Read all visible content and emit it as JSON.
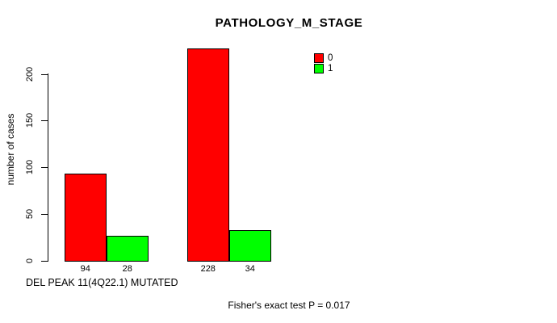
{
  "page": {
    "background": "#ffffff",
    "text_color": "#000000"
  },
  "chart_data": {
    "type": "bar",
    "title": "PATHOLOGY_M_STAGE",
    "ylabel": "number of cases",
    "xlabel": "DEL PEAK 11(4Q22.1) MUTATED",
    "annotation": "Fisher's exact test P = 0.017",
    "grid": false,
    "legend_position": "top-right-inside",
    "axis": {
      "yticks": [
        0,
        50,
        100,
        150,
        200
      ],
      "ylim": [
        0,
        200
      ],
      "axis_color": "#000000"
    },
    "series": [
      {
        "name": "0",
        "color": "#ff0000",
        "values": [
          94,
          228
        ]
      },
      {
        "name": "1",
        "color": "#00ff00",
        "values": [
          28,
          34
        ]
      }
    ],
    "groups": [
      {
        "id": "group-1",
        "bars": [
          {
            "series": "0",
            "value": 94,
            "label": "94",
            "color": "#ff0000"
          },
          {
            "series": "1",
            "value": 28,
            "label": "28",
            "color": "#00ff00"
          }
        ]
      },
      {
        "id": "group-2",
        "bars": [
          {
            "series": "0",
            "value": 228,
            "label": "228",
            "color": "#ff0000"
          },
          {
            "series": "1",
            "value": 34,
            "label": "34",
            "color": "#00ff00"
          }
        ]
      }
    ]
  }
}
